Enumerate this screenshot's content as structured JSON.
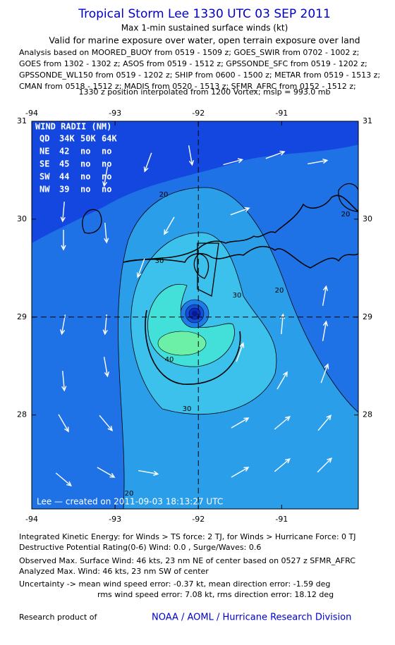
{
  "header": {
    "title": "Tropical Storm Lee 1330 UTC 03 SEP 2011",
    "subtitle": "Max 1-min sustained surface winds (kt)",
    "validity": "Valid for marine exposure over water, open terrain exposure over land",
    "analysis": [
      "Analysis based on MOORED_BUOY from 0519 - 1509 z; GOES_SWIR from 0702 - 1002 z;",
      "GOES from 1302 - 1302 z; ASOS from 0519 - 1512 z; GPSSONDE_SFC from 0519 - 1202 z;",
      "GPSSONDE_WL150 from 0519 - 1202 z; SHIP from 0600 - 1500 z; METAR from 0519 - 1513 z;",
      "CMAN from 0518 - 1512 z; MADIS from 0520 - 1513 z; SFMR_AFRC from 0152 - 1512 z;"
    ],
    "position_note": "1330 z position interpolated from 1200 Vortex; mslp = 993.0 mb"
  },
  "map": {
    "lonlim": [
      -94,
      -90.08
    ],
    "latlim": [
      27.04,
      31
    ],
    "lonticks": [
      -94,
      -93,
      -92,
      -91
    ],
    "latticks": [
      31,
      30,
      29,
      28
    ],
    "contour_levels": [
      20,
      30,
      40
    ],
    "wind_radii": {
      "title": "WIND RADII (NM)",
      "columns": [
        "QD",
        "34K",
        "50K",
        "64K"
      ],
      "rows": [
        [
          "NE",
          42,
          "no",
          "no"
        ],
        [
          "SE",
          45,
          "no",
          "no"
        ],
        [
          "SW",
          44,
          "no",
          "no"
        ],
        [
          "NW",
          39,
          "no",
          "no"
        ]
      ]
    },
    "credit": "Lee — created on 2011-09-03 18:13:27 UTC"
  },
  "footer": {
    "lines": [
      "Integrated Kinetic Energy:  for Winds > TS force: 2 TJ,  for Winds > Hurricane Force: 0 TJ",
      "Destructive Potential Rating(0-6)   Wind: 0.0 , Surge/Waves: 0.6",
      "Observed Max. Surface Wind: 46 kts, 23 nm NE of center based on 0527 z SFMR_AFRC",
      "Analyzed Max. Wind: 46 kts, 23 nm SW of center",
      "Uncertainty -> mean wind speed error:  -0.37 kt,   mean direction error:  -1.59 deg",
      "rms wind speed error: 7.08 kt,   rms direction error: 18.12 deg"
    ],
    "credit": "Research product of",
    "org": "NOAA / AOML / Hurricane Research Division"
  }
}
